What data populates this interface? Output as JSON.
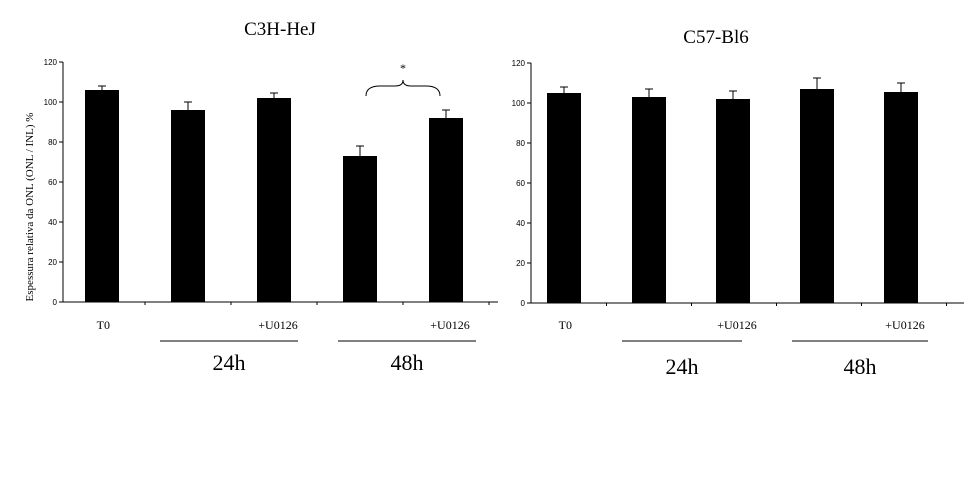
{
  "chart_data": [
    {
      "type": "bar",
      "title": "C3H-HeJ",
      "ylabel": "Espessura relativa da ONL (ONL / INL) %",
      "xlabel": "",
      "ylim": [
        0,
        120
      ],
      "yticks": [
        0,
        20,
        40,
        60,
        80,
        100,
        120
      ],
      "grid": false,
      "categories": [
        "T0",
        "",
        "+U0126",
        "",
        "+U0126"
      ],
      "values": [
        106,
        96,
        102,
        73,
        92
      ],
      "errors": [
        2,
        4,
        2.5,
        5,
        4
      ],
      "groups": [
        {
          "label": "24h",
          "members": [
            1,
            2
          ]
        },
        {
          "label": "48h",
          "members": [
            3,
            4
          ]
        }
      ],
      "annotations": [
        {
          "text": "*",
          "between": [
            3,
            4
          ]
        }
      ]
    },
    {
      "type": "bar",
      "title": "C57-Bl6",
      "ylabel": "",
      "xlabel": "",
      "ylim": [
        0,
        120
      ],
      "yticks": [
        0,
        20,
        40,
        60,
        80,
        100,
        120
      ],
      "grid": false,
      "categories": [
        "T0",
        "",
        "+U0126",
        "",
        "+U0126"
      ],
      "values": [
        105,
        103,
        102,
        107,
        105.5
      ],
      "errors": [
        3,
        4,
        4,
        5.5,
        4.5
      ],
      "groups": [
        {
          "label": "24h",
          "members": [
            1,
            2
          ]
        },
        {
          "label": "48h",
          "members": [
            3,
            4
          ]
        }
      ],
      "annotations": []
    }
  ]
}
